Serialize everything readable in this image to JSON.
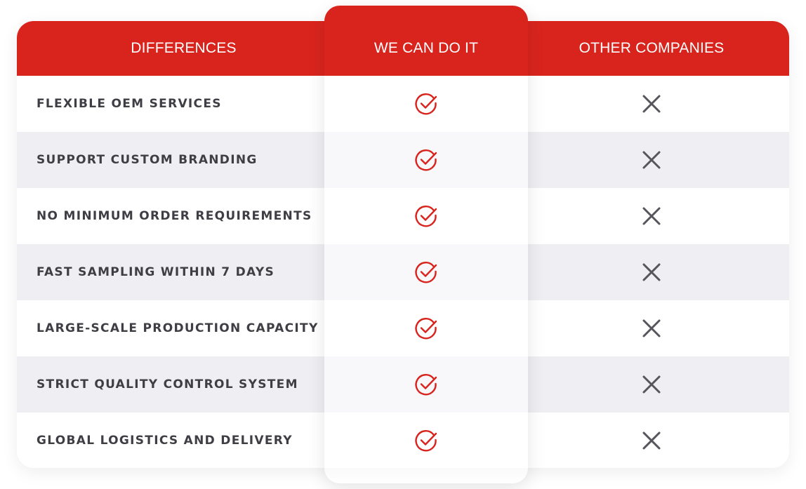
{
  "header": {
    "differences": "DIFFERENCES",
    "we_can_do_it": "WE CAN DO IT",
    "other_companies": "OTHER COMPANIES"
  },
  "rows": [
    {
      "label": "FLEXIBLE OEM SERVICES",
      "us": "check-icon",
      "others": "x-icon"
    },
    {
      "label": "SUPPORT CUSTOM BRANDING",
      "us": "check-icon",
      "others": "x-icon"
    },
    {
      "label": "NO MINIMUM ORDER REQUIREMENTS",
      "us": "check-icon",
      "others": "x-icon"
    },
    {
      "label": "FAST SAMPLING WITHIN 7 DAYS",
      "us": "check-icon",
      "others": "x-icon"
    },
    {
      "label": "LARGE-SCALE PRODUCTION CAPACITY",
      "us": "check-icon",
      "others": "x-icon"
    },
    {
      "label": "STRICT QUALITY CONTROL SYSTEM",
      "us": "check-icon",
      "others": "x-icon"
    },
    {
      "label": "GLOBAL LOGISTICS AND DELIVERY",
      "us": "check-icon",
      "others": "x-icon"
    }
  ],
  "colors": {
    "accent": "#d8241d",
    "row_alt": "#efeff3",
    "text": "#3e3e44",
    "x_mark": "#55555c"
  }
}
